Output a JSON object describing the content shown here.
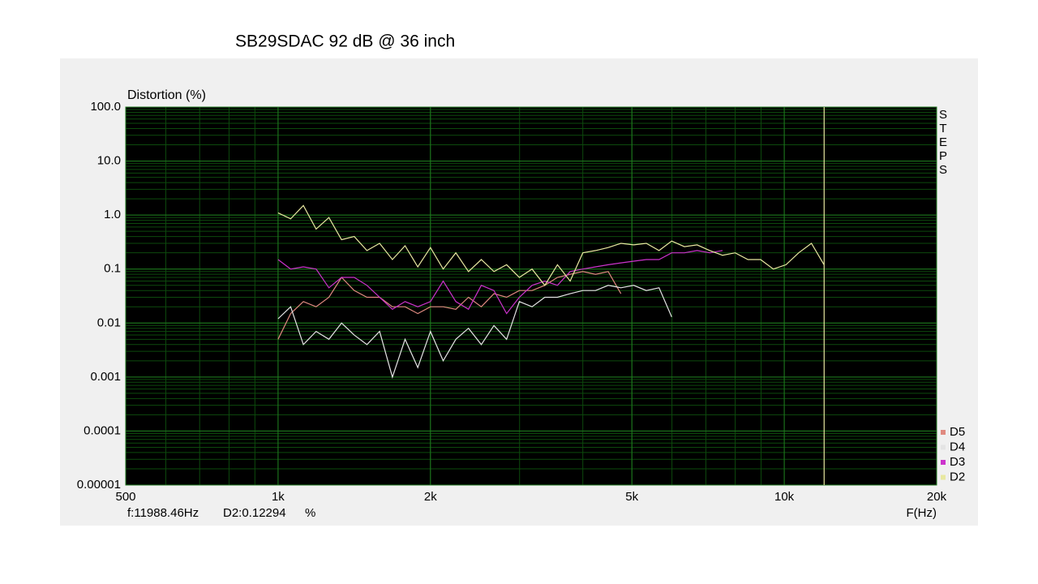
{
  "chart_data": {
    "type": "line",
    "title": "SB29SDAC   92 dB @ 36 inch",
    "y_label": "Distortion (%)",
    "x_label": "F(Hz)",
    "side_label": "STEPS",
    "xlog": true,
    "ylog": true,
    "grid": true,
    "legend": "bottom-right",
    "xlim": [
      500,
      20000
    ],
    "ylim": [
      1e-05,
      100
    ],
    "xticks": [
      500,
      {
        "value": 1000,
        "label": "1k"
      },
      {
        "value": 2000,
        "label": "2k"
      },
      {
        "value": 5000,
        "label": "5k"
      },
      {
        "value": 10000,
        "label": "10k"
      },
      {
        "value": 20000,
        "label": "20k"
      }
    ],
    "yticks": [
      1e-05,
      0.0001,
      0.001,
      0.01,
      0.1,
      {
        "value": 1,
        "label": "1.0"
      },
      {
        "value": 10,
        "label": "10.0"
      },
      {
        "value": 100,
        "label": "100.0"
      }
    ],
    "cursor": {
      "freq": 11988.46,
      "freq_label": "f:11988.46Hz",
      "readout": "D2:0.12294",
      "unit": "%",
      "color": "#e8e8a0"
    },
    "x": [
      1000,
      1059,
      1122,
      1189,
      1260,
      1335,
      1414,
      1498,
      1587,
      1682,
      1782,
      1888,
      2000,
      2119,
      2245,
      2378,
      2520,
      2670,
      2828,
      2997,
      3175,
      3364,
      3564,
      3776,
      4000,
      4238,
      4490,
      4757,
      5040,
      5340,
      5657,
      5993,
      6350,
      6727,
      7127,
      7551,
      8000,
      8476,
      8980,
      9514,
      10079,
      10679,
      11314,
      11986
    ],
    "series": [
      {
        "name": "D5",
        "color": "#e08a80",
        "values": [
          0.005,
          0.015,
          0.025,
          0.02,
          0.03,
          0.07,
          0.04,
          0.03,
          0.03,
          0.02,
          0.02,
          0.015,
          0.02,
          0.02,
          0.018,
          0.03,
          0.02,
          0.035,
          0.03,
          0.04,
          0.04,
          0.05,
          0.07,
          0.08,
          0.09,
          0.08,
          0.09,
          0.035,
          null,
          null,
          null,
          null,
          null,
          null,
          null,
          null,
          null,
          null,
          null,
          null,
          null,
          null,
          null,
          null
        ]
      },
      {
        "name": "D4",
        "color": "#e4e4e4",
        "values": [
          0.012,
          0.02,
          0.004,
          0.007,
          0.005,
          0.01,
          0.006,
          0.004,
          0.007,
          0.001,
          0.005,
          0.0015,
          0.007,
          0.002,
          0.005,
          0.008,
          0.004,
          0.009,
          0.005,
          0.025,
          0.02,
          0.03,
          0.03,
          0.035,
          0.04,
          0.04,
          0.05,
          0.045,
          0.05,
          0.04,
          0.045,
          0.013,
          null,
          null,
          null,
          null,
          null,
          null,
          null,
          null,
          null,
          null,
          null,
          null
        ]
      },
      {
        "name": "D3",
        "color": "#cc33cc",
        "values": [
          0.15,
          0.1,
          0.11,
          0.1,
          0.045,
          0.07,
          0.07,
          0.05,
          0.03,
          0.018,
          0.025,
          0.02,
          0.025,
          0.06,
          0.025,
          0.018,
          0.05,
          0.04,
          0.015,
          0.03,
          0.05,
          0.06,
          0.05,
          0.09,
          0.1,
          0.11,
          0.12,
          0.13,
          0.14,
          0.15,
          0.15,
          0.2,
          0.2,
          0.22,
          0.2,
          0.22,
          null,
          null,
          null,
          null,
          null,
          null,
          null,
          null
        ]
      },
      {
        "name": "D2",
        "color": "#e8e8a0",
        "values": [
          1.1,
          0.85,
          1.5,
          0.55,
          0.9,
          0.35,
          0.4,
          0.22,
          0.3,
          0.15,
          0.27,
          0.11,
          0.25,
          0.1,
          0.2,
          0.09,
          0.15,
          0.09,
          0.12,
          0.07,
          0.1,
          0.05,
          0.12,
          0.06,
          0.2,
          0.22,
          0.25,
          0.3,
          0.28,
          0.3,
          0.22,
          0.33,
          0.26,
          0.28,
          0.22,
          0.18,
          0.2,
          0.15,
          0.15,
          0.1,
          0.12,
          0.2,
          0.3,
          0.12
        ]
      }
    ]
  }
}
